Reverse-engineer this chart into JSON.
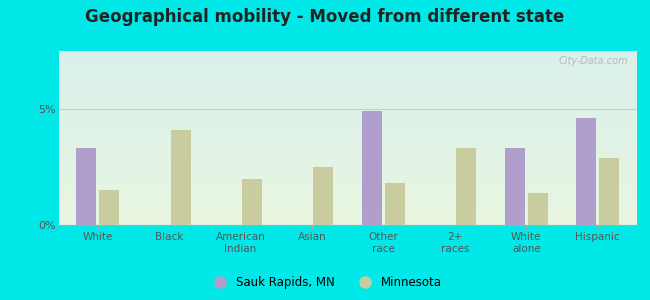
{
  "title": "Geographical mobility - Moved from different state",
  "categories": [
    "White",
    "Black",
    "American\nIndian",
    "Asian",
    "Other\nrace",
    "2+\nraces",
    "White\nalone",
    "Hispanic"
  ],
  "sauk_rapids": [
    3.3,
    0.0,
    0.0,
    0.0,
    4.9,
    0.0,
    3.3,
    4.6
  ],
  "minnesota": [
    1.5,
    4.1,
    2.0,
    2.5,
    1.8,
    3.3,
    1.4,
    2.9
  ],
  "sauk_color": "#b09fcc",
  "minnesota_color": "#c8cc9f",
  "ylim": [
    0,
    7.5
  ],
  "yticks": [
    0,
    5
  ],
  "ytick_labels": [
    "0%",
    "5%"
  ],
  "outer_bg": "#00e8e8",
  "bg_top": "#daf0ec",
  "bg_bottom": "#e8f5e0",
  "watermark": "City-Data.com",
  "legend_sauk": "Sauk Rapids, MN",
  "legend_mn": "Minnesota",
  "title_fontsize": 12
}
